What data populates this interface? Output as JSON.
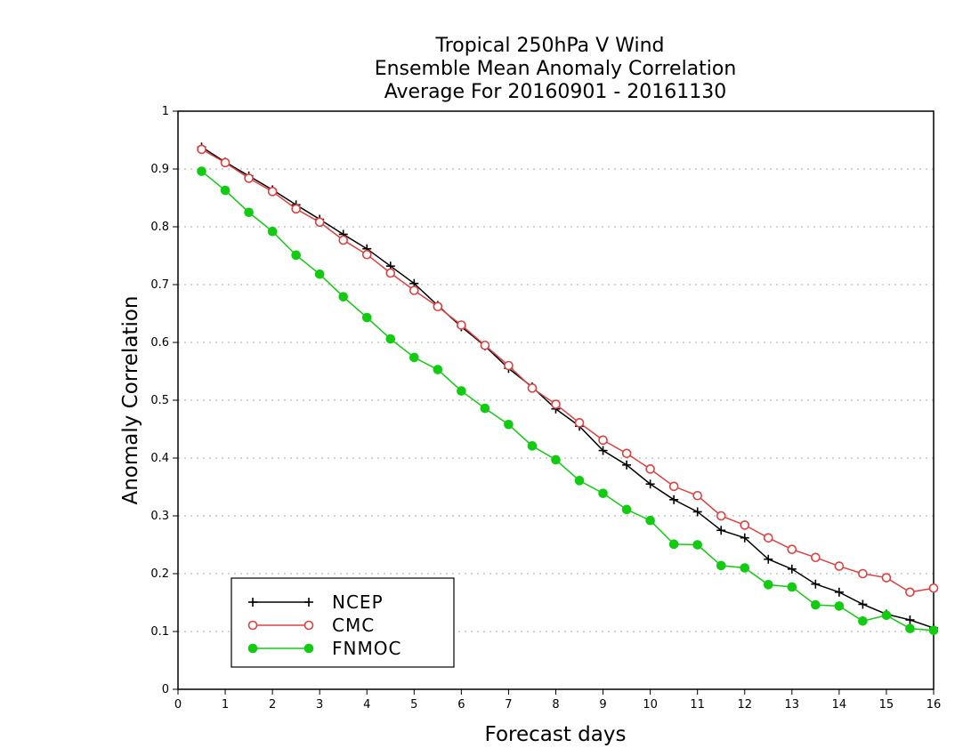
{
  "chart_data": {
    "type": "line",
    "title": [
      "Tropical 250hPa V Wind",
      "Ensemble Mean Anomaly Correlation",
      "Average For 20160901 - 20161130"
    ],
    "xlabel": "Forecast days",
    "ylabel": "Anomaly Correlation",
    "xlim": [
      0,
      16
    ],
    "ylim": [
      0,
      1
    ],
    "x_ticks": [
      "0",
      "1",
      "2",
      "3",
      "4",
      "5",
      "6",
      "7",
      "8",
      "9",
      "10",
      "11",
      "12",
      "13",
      "14",
      "15",
      "16"
    ],
    "y_ticks": [
      "0",
      "0.1",
      "0.2",
      "0.3",
      "0.4",
      "0.5",
      "0.6",
      "0.7",
      "0.8",
      "0.9",
      "1"
    ],
    "grid": "horizontal dotted",
    "legend_position": "bottom-left",
    "x": [
      0.5,
      1,
      1.5,
      2,
      2.5,
      3,
      3.5,
      4,
      4.5,
      5,
      5.5,
      6,
      6.5,
      7,
      7.5,
      8,
      8.5,
      9,
      9.5,
      10,
      10.5,
      11,
      11.5,
      12,
      12.5,
      13,
      13.5,
      14,
      14.5,
      15,
      15.5,
      16
    ],
    "series": [
      {
        "name": "NCEP",
        "color": "#000000",
        "marker": "plus",
        "values": [
          0.938,
          0.912,
          0.888,
          0.864,
          0.838,
          0.813,
          0.787,
          0.762,
          0.732,
          0.702,
          0.664,
          0.627,
          0.594,
          0.555,
          0.523,
          0.485,
          0.455,
          0.413,
          0.388,
          0.355,
          0.328,
          0.307,
          0.275,
          0.262,
          0.225,
          0.208,
          0.182,
          0.168,
          0.147,
          0.13,
          0.12,
          0.106
        ]
      },
      {
        "name": "CMC",
        "color": "#e04040",
        "marker": "open-circle",
        "values": [
          0.934,
          0.911,
          0.884,
          0.861,
          0.831,
          0.808,
          0.777,
          0.752,
          0.72,
          0.69,
          0.662,
          0.63,
          0.595,
          0.56,
          0.521,
          0.493,
          0.461,
          0.431,
          0.408,
          0.381,
          0.351,
          0.335,
          0.3,
          0.284,
          0.262,
          0.242,
          0.228,
          0.213,
          0.2,
          0.193,
          0.168,
          0.175
        ]
      },
      {
        "name": "FNMOC",
        "color": "#11cc11",
        "marker": "filled-circle",
        "values": [
          0.896,
          0.863,
          0.825,
          0.792,
          0.751,
          0.718,
          0.679,
          0.643,
          0.606,
          0.574,
          0.553,
          0.516,
          0.486,
          0.458,
          0.421,
          0.397,
          0.361,
          0.339,
          0.311,
          0.292,
          0.251,
          0.25,
          0.214,
          0.21,
          0.181,
          0.177,
          0.146,
          0.144,
          0.118,
          0.128,
          0.105,
          0.102
        ]
      }
    ]
  }
}
